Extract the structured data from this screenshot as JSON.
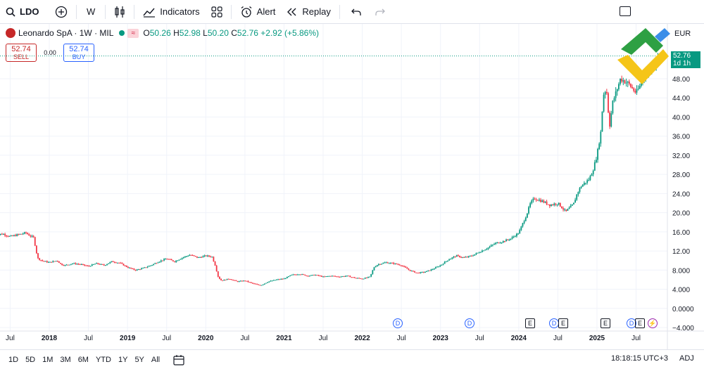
{
  "toolbar": {
    "symbol": "LDO",
    "interval": "W",
    "indicators_label": "Indicators",
    "alert_label": "Alert",
    "replay_label": "Replay"
  },
  "legend": {
    "title": "Leonardo SpA · 1W · MIL",
    "open_key": "O",
    "open": "50.26",
    "high_key": "H",
    "high": "52.98",
    "low_key": "L",
    "low": "50.20",
    "close_key": "C",
    "close": "52.76",
    "change": "+2.92 (+5.86%)"
  },
  "trade": {
    "sell_price": "52.74",
    "sell_label": "SELL",
    "spread": "0.00",
    "buy_price": "52.74",
    "buy_label": "BUY"
  },
  "price_axis": {
    "currency": "EUR",
    "current_price": "52.76",
    "countdown": "1d 1h",
    "ticks": [
      "48.00",
      "44.00",
      "40.00",
      "36.00",
      "32.00",
      "28.00",
      "24.00",
      "20.00",
      "16.00",
      "12.00",
      "8.000",
      "4.000",
      "0.0000",
      "−4.000"
    ]
  },
  "time_axis": {
    "labels": [
      "Jul",
      "2018",
      "Jul",
      "2019",
      "Jul",
      "2020",
      "Jul",
      "2021",
      "Jul",
      "2022",
      "Jul",
      "2023",
      "Jul",
      "2024",
      "Jul",
      "2025",
      "Jul"
    ]
  },
  "events": [
    {
      "type": "dividend",
      "glyph": "D"
    },
    {
      "type": "dividend",
      "glyph": "D"
    },
    {
      "type": "earnings",
      "glyph": "E"
    },
    {
      "type": "dividend",
      "glyph": "D"
    },
    {
      "type": "earnings",
      "glyph": "E"
    },
    {
      "type": "earnings",
      "glyph": "E"
    },
    {
      "type": "dividend",
      "glyph": "D"
    },
    {
      "type": "earnings",
      "glyph": "E"
    },
    {
      "type": "split",
      "glyph": "⚡"
    }
  ],
  "bottom": {
    "ranges": [
      "1D",
      "5D",
      "1M",
      "3M",
      "6M",
      "YTD",
      "1Y",
      "5Y",
      "All"
    ],
    "time": "18:18:15 UTC+3",
    "adj": "ADJ"
  },
  "colors": {
    "up": "#089981",
    "down": "#f23645",
    "accent": "#2962ff"
  },
  "chart_data": {
    "type": "candlestick",
    "symbol": "Leonardo SpA",
    "interval": "1W",
    "ylim": [
      -4,
      52
    ],
    "x_start": 2017.3,
    "x_end": 2025.85,
    "series": [
      [
        2017.3,
        15.2
      ],
      [
        2017.4,
        15.6
      ],
      [
        2017.5,
        15.0
      ],
      [
        2017.6,
        15.4
      ],
      [
        2017.7,
        15.8
      ],
      [
        2017.75,
        15.2
      ],
      [
        2017.8,
        14.8
      ],
      [
        2017.85,
        10.5
      ],
      [
        2017.9,
        10.0
      ],
      [
        2017.95,
        9.8
      ],
      [
        2018.0,
        9.6
      ],
      [
        2018.1,
        10.0
      ],
      [
        2018.15,
        9.2
      ],
      [
        2018.2,
        9.0
      ],
      [
        2018.3,
        9.4
      ],
      [
        2018.4,
        9.2
      ],
      [
        2018.5,
        8.8
      ],
      [
        2018.6,
        9.4
      ],
      [
        2018.7,
        9.0
      ],
      [
        2018.8,
        9.8
      ],
      [
        2018.9,
        9.5
      ],
      [
        2019.0,
        8.6
      ],
      [
        2019.1,
        8.0
      ],
      [
        2019.2,
        8.4
      ],
      [
        2019.3,
        9.0
      ],
      [
        2019.4,
        9.8
      ],
      [
        2019.5,
        10.4
      ],
      [
        2019.6,
        9.8
      ],
      [
        2019.7,
        10.6
      ],
      [
        2019.8,
        11.2
      ],
      [
        2019.9,
        10.6
      ],
      [
        2020.0,
        11.0
      ],
      [
        2020.08,
        10.8
      ],
      [
        2020.12,
        9.0
      ],
      [
        2020.16,
        6.5
      ],
      [
        2020.2,
        5.8
      ],
      [
        2020.3,
        6.2
      ],
      [
        2020.4,
        5.6
      ],
      [
        2020.5,
        5.8
      ],
      [
        2020.6,
        5.2
      ],
      [
        2020.7,
        4.8
      ],
      [
        2020.8,
        5.6
      ],
      [
        2020.9,
        6.0
      ],
      [
        2021.0,
        6.2
      ],
      [
        2021.1,
        7.0
      ],
      [
        2021.2,
        7.2
      ],
      [
        2021.3,
        6.8
      ],
      [
        2021.4,
        7.0
      ],
      [
        2021.5,
        6.6
      ],
      [
        2021.6,
        6.8
      ],
      [
        2021.7,
        6.6
      ],
      [
        2021.8,
        6.8
      ],
      [
        2021.9,
        6.4
      ],
      [
        2022.0,
        6.2
      ],
      [
        2022.1,
        6.6
      ],
      [
        2022.15,
        8.6
      ],
      [
        2022.2,
        9.2
      ],
      [
        2022.3,
        9.6
      ],
      [
        2022.4,
        9.4
      ],
      [
        2022.5,
        9.0
      ],
      [
        2022.6,
        8.0
      ],
      [
        2022.7,
        7.4
      ],
      [
        2022.8,
        7.6
      ],
      [
        2022.9,
        8.2
      ],
      [
        2023.0,
        9.0
      ],
      [
        2023.1,
        10.2
      ],
      [
        2023.2,
        11.0
      ],
      [
        2023.3,
        10.6
      ],
      [
        2023.4,
        11.0
      ],
      [
        2023.5,
        11.8
      ],
      [
        2023.6,
        12.6
      ],
      [
        2023.7,
        13.6
      ],
      [
        2023.8,
        14.0
      ],
      [
        2023.9,
        14.6
      ],
      [
        2024.0,
        15.8
      ],
      [
        2024.1,
        19.6
      ],
      [
        2024.15,
        22.0
      ],
      [
        2024.2,
        23.0
      ],
      [
        2024.3,
        22.4
      ],
      [
        2024.4,
        21.6
      ],
      [
        2024.5,
        22.0
      ],
      [
        2024.6,
        20.2
      ],
      [
        2024.7,
        21.8
      ],
      [
        2024.75,
        24.2
      ],
      [
        2024.8,
        25.6
      ],
      [
        2024.9,
        27.0
      ],
      [
        2024.95,
        29.0
      ],
      [
        2025.0,
        32.0
      ],
      [
        2025.05,
        37.0
      ],
      [
        2025.08,
        44.6
      ],
      [
        2025.12,
        46.0
      ],
      [
        2025.16,
        38.0
      ],
      [
        2025.2,
        43.0
      ],
      [
        2025.3,
        48.0
      ],
      [
        2025.4,
        47.0
      ],
      [
        2025.5,
        45.0
      ],
      [
        2025.55,
        46.5
      ],
      [
        2025.6,
        48.5
      ],
      [
        2025.7,
        50.0
      ],
      [
        2025.8,
        52.76
      ]
    ]
  }
}
